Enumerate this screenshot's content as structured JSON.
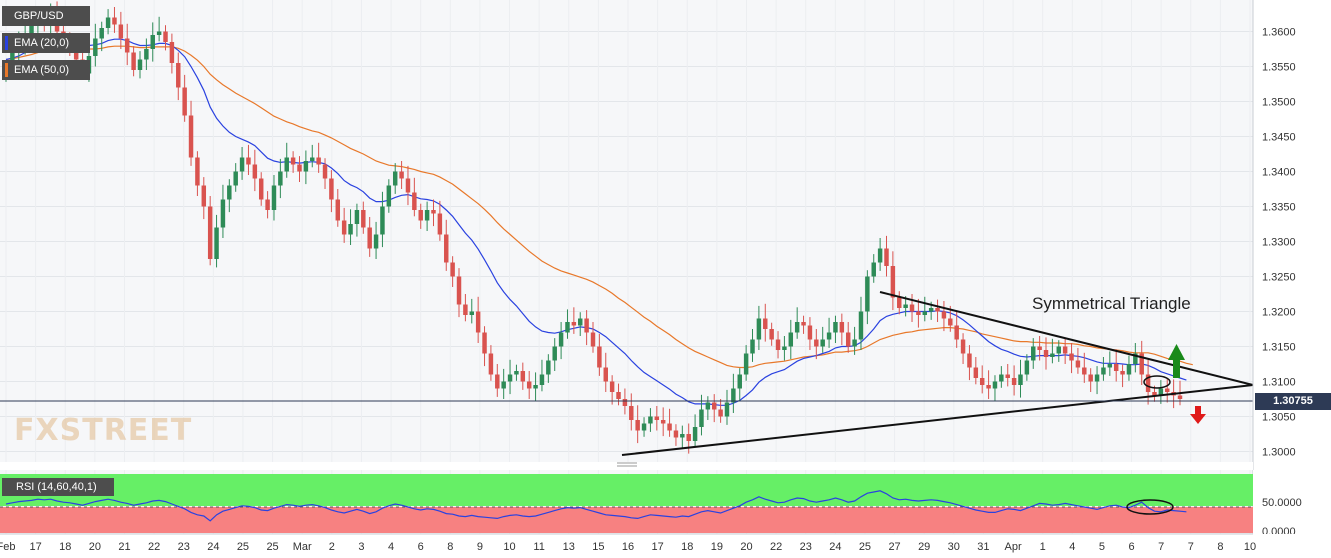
{
  "chart_data": {
    "type": "candlestick",
    "legend": {
      "symbol": "GBP/USD",
      "ema20": "EMA (20,0)",
      "ema50": "EMA (50,0)",
      "rsi": "RSI (14,60,40,1)"
    },
    "watermark": "FXSTREET",
    "annotation": "Symmetrical Triangle",
    "current_price": "1.30755",
    "ylim": [
      1.2985,
      1.3645
    ],
    "y_ticks": [
      "1.3600",
      "1.3550",
      "1.3500",
      "1.3450",
      "1.3400",
      "1.3350",
      "1.3300",
      "1.3250",
      "1.3200",
      "1.3150",
      "1.3100",
      "1.3050",
      "1.3000"
    ],
    "rsi_ticks": [
      "50.0000",
      "0.0000"
    ],
    "x_ticks": [
      "Feb",
      "17",
      "18",
      "20",
      "21",
      "22",
      "23",
      "24",
      "25",
      "25",
      "Mar",
      "2",
      "3",
      "4",
      "6",
      "8",
      "9",
      "10",
      "11",
      "13",
      "15",
      "16",
      "17",
      "18",
      "19",
      "20",
      "22",
      "23",
      "24",
      "25",
      "27",
      "29",
      "30",
      "31",
      "Apr",
      "1",
      "4",
      "5",
      "6",
      "7",
      "7",
      "8",
      "10"
    ],
    "candle_closes": [
      1.3545,
      1.357,
      1.3585,
      1.3595,
      1.361,
      1.362,
      1.3615,
      1.3625,
      1.36,
      1.359,
      1.358,
      1.356,
      1.354,
      1.3565,
      1.359,
      1.3605,
      1.362,
      1.361,
      1.359,
      1.357,
      1.3545,
      1.356,
      1.3575,
      1.3595,
      1.36,
      1.3585,
      1.3555,
      1.352,
      1.348,
      1.342,
      1.338,
      1.335,
      1.3275,
      1.332,
      1.336,
      1.338,
      1.34,
      1.342,
      1.341,
      1.339,
      1.336,
      1.3345,
      1.338,
      1.34,
      1.342,
      1.341,
      1.34,
      1.3415,
      1.342,
      1.341,
      1.339,
      1.336,
      1.333,
      1.331,
      1.3325,
      1.3345,
      1.332,
      1.329,
      1.331,
      1.335,
      1.338,
      1.34,
      1.339,
      1.337,
      1.3345,
      1.333,
      1.3345,
      1.334,
      1.331,
      1.327,
      1.325,
      1.321,
      1.3195,
      1.32,
      1.317,
      1.314,
      1.311,
      1.309,
      1.31,
      1.311,
      1.3115,
      1.31,
      1.309,
      1.3095,
      1.311,
      1.313,
      1.315,
      1.317,
      1.3185,
      1.318,
      1.319,
      1.317,
      1.315,
      1.312,
      1.31,
      1.3085,
      1.3075,
      1.3065,
      1.3045,
      1.303,
      1.304,
      1.305,
      1.3045,
      1.304,
      1.303,
      1.302,
      1.3025,
      1.3015,
      1.3035,
      1.306,
      1.307,
      1.306,
      1.305,
      1.307,
      1.309,
      1.311,
      1.314,
      1.316,
      1.319,
      1.3175,
      1.316,
      1.3145,
      1.315,
      1.317,
      1.3185,
      1.318,
      1.316,
      1.315,
      1.316,
      1.317,
      1.3185,
      1.317,
      1.315,
      1.316,
      1.32,
      1.325,
      1.327,
      1.329,
      1.3265,
      1.322,
      1.3205,
      1.321,
      1.32,
      1.3195,
      1.32,
      1.3205,
      1.32,
      1.319,
      1.318,
      1.316,
      1.314,
      1.312,
      1.3105,
      1.3095,
      1.309,
      1.31,
      1.311,
      1.3105,
      1.3095,
      1.311,
      1.313,
      1.315,
      1.3145,
      1.3135,
      1.314,
      1.315,
      1.314,
      1.313,
      1.312,
      1.311,
      1.31,
      1.311,
      1.312,
      1.3125,
      1.3115,
      1.311,
      1.3125,
      1.314,
      1.311,
      1.3085,
      1.308,
      1.309,
      1.3085,
      1.308,
      1.3075
    ],
    "ema20": [
      1.356,
      1.3562,
      1.3565,
      1.357,
      1.3575,
      1.358,
      1.3583,
      1.3587,
      1.3588,
      1.3588,
      1.3587,
      1.3585,
      1.3581,
      1.358,
      1.3581,
      1.3583,
      1.3587,
      1.3589,
      1.3589,
      1.3587,
      1.3583,
      1.358,
      1.358,
      1.3581,
      1.3583,
      1.3583,
      1.358,
      1.3573,
      1.3564,
      1.355,
      1.3534,
      1.3516,
      1.3492,
      1.3476,
      1.3465,
      1.3456,
      1.345,
      1.3446,
      1.3442,
      1.3437,
      1.3428,
      1.3419,
      1.3415,
      1.3413,
      1.3414,
      1.3413,
      1.3412,
      1.3413,
      1.3414,
      1.3413,
      1.3411,
      1.3405,
      1.3397,
      1.3387,
      1.3381,
      1.3377,
      1.3371,
      1.3362,
      1.3357,
      1.3357,
      1.3359,
      1.3363,
      1.3366,
      1.3367,
      1.3364,
      1.3361,
      1.336,
      1.3358,
      1.3353,
      1.3345,
      1.3336,
      1.3324,
      1.3312,
      1.3302,
      1.3289,
      1.3274,
      1.3258,
      1.3241,
      1.3228,
      1.3217,
      1.3208,
      1.3197,
      1.3186,
      1.3178,
      1.3172,
      1.317,
      1.3169,
      1.3171,
      1.3174,
      1.3176,
      1.3178,
      1.3177,
      1.3175,
      1.317,
      1.3164,
      1.3156,
      1.3148,
      1.314,
      1.313,
      1.3121,
      1.3113,
      1.3107,
      1.3101,
      1.3095,
      1.3089,
      1.3082,
      1.3077,
      1.3071,
      1.3068,
      1.3068,
      1.3068,
      1.3067,
      1.3066,
      1.3066,
      1.3069,
      1.3073,
      1.308,
      1.3088,
      1.3099,
      1.3106,
      1.3111,
      1.3114,
      1.3117,
      1.3123,
      1.3129,
      1.3133,
      1.3135,
      1.3137,
      1.314,
      1.3143,
      1.3148,
      1.315,
      1.315,
      1.3151,
      1.3156,
      1.3165,
      1.3175,
      1.3187,
      1.3193,
      1.3196,
      1.3198,
      1.32,
      1.32,
      1.32,
      1.32,
      1.32,
      1.3201,
      1.32,
      1.3198,
      1.3194,
      1.3188,
      1.3181,
      1.3173,
      1.3165,
      1.3157,
      1.3151,
      1.3146,
      1.3143,
      1.3139,
      1.3136,
      1.3135,
      1.3136,
      1.3137,
      1.3137,
      1.3137,
      1.3137,
      1.3138,
      1.3137,
      1.3136,
      1.3134,
      1.3131,
      1.3128,
      1.3126,
      1.3126,
      1.3126,
      1.3125,
      1.3124,
      1.3124,
      1.3125,
      1.3123,
      1.3119,
      1.3114,
      1.3111,
      1.3108,
      1.3105,
      1.3102
    ],
    "ema50": [
      1.356,
      1.3561,
      1.3563,
      1.3565,
      1.3567,
      1.357,
      1.3572,
      1.3574,
      1.3575,
      1.3576,
      1.3576,
      1.3576,
      1.3575,
      1.3575,
      1.3575,
      1.3576,
      1.3578,
      1.3579,
      1.3579,
      1.3579,
      1.3578,
      1.3577,
      1.3577,
      1.3578,
      1.3578,
      1.3578,
      1.3578,
      1.3576,
      1.3572,
      1.3566,
      1.3559,
      1.355,
      1.3539,
      1.3531,
      1.3524,
      1.3518,
      1.3512,
      1.3507,
      1.3502,
      1.3497,
      1.3491,
      1.3485,
      1.3479,
      1.3475,
      1.3471,
      1.3468,
      1.3464,
      1.3461,
      1.3458,
      1.3456,
      1.3452,
      1.3448,
      1.3443,
      1.3438,
      1.3433,
      1.3429,
      1.3425,
      1.342,
      1.3415,
      1.3412,
      1.3409,
      1.3408,
      1.3407,
      1.3405,
      1.3403,
      1.34,
      1.3398,
      1.3396,
      1.3392,
      1.3387,
      1.3382,
      1.3375,
      1.3368,
      1.3361,
      1.3354,
      1.3346,
      1.3337,
      1.3327,
      1.3318,
      1.331,
      1.3302,
      1.3294,
      1.3286,
      1.3279,
      1.3272,
      1.3267,
      1.3262,
      1.3258,
      1.3255,
      1.3252,
      1.3249,
      1.3246,
      1.3242,
      1.3237,
      1.3232,
      1.3226,
      1.3219,
      1.3213,
      1.3206,
      1.3199,
      1.3192,
      1.3186,
      1.3179,
      1.3173,
      1.3167,
      1.316,
      1.3154,
      1.3148,
      1.3143,
      1.3139,
      1.3135,
      1.3131,
      1.3127,
      1.3123,
      1.3121,
      1.312,
      1.312,
      1.3121,
      1.3124,
      1.3126,
      1.3127,
      1.3128,
      1.3129,
      1.3131,
      1.3133,
      1.3135,
      1.3136,
      1.3137,
      1.3138,
      1.314,
      1.3142,
      1.3142,
      1.3143,
      1.3144,
      1.3146,
      1.315,
      1.3155,
      1.316,
      1.3163,
      1.3166,
      1.3168,
      1.317,
      1.3171,
      1.3173,
      1.3174,
      1.3175,
      1.3176,
      1.3177,
      1.3177,
      1.3176,
      1.3175,
      1.3173,
      1.3171,
      1.3168,
      1.3166,
      1.3164,
      1.3162,
      1.316,
      1.3158,
      1.3157,
      1.3157,
      1.3156,
      1.3156,
      1.3155,
      1.3155,
      1.3155,
      1.3154,
      1.3154,
      1.3153,
      1.3151,
      1.315,
      1.3148,
      1.3147,
      1.3146,
      1.3145,
      1.3144,
      1.3142,
      1.3141,
      1.3141,
      1.3141,
      1.3139,
      1.3136,
      1.3133,
      1.3131,
      1.3129,
      1.3126,
      1.3124
    ],
    "rsi": [
      50,
      52,
      54,
      55,
      56,
      58,
      57,
      58,
      55,
      53,
      52,
      50,
      48,
      51,
      54,
      56,
      58,
      56,
      53,
      51,
      48,
      50,
      52,
      55,
      56,
      54,
      50,
      46,
      42,
      36,
      32,
      30,
      22,
      32,
      38,
      41,
      44,
      47,
      46,
      44,
      40,
      39,
      43,
      46,
      49,
      48,
      46,
      48,
      49,
      47,
      44,
      40,
      37,
      35,
      38,
      41,
      38,
      34,
      37,
      43,
      47,
      50,
      48,
      45,
      42,
      40,
      42,
      41,
      38,
      34,
      33,
      30,
      29,
      31,
      29,
      28,
      27,
      26,
      29,
      31,
      32,
      30,
      29,
      30,
      33,
      36,
      39,
      42,
      44,
      43,
      44,
      41,
      38,
      35,
      32,
      31,
      30,
      29,
      27,
      26,
      29,
      32,
      31,
      30,
      29,
      28,
      30,
      29,
      33,
      37,
      39,
      37,
      35,
      39,
      43,
      47,
      53,
      57,
      62,
      58,
      55,
      52,
      53,
      57,
      60,
      59,
      55,
      53,
      55,
      57,
      60,
      57,
      53,
      55,
      62,
      68,
      70,
      72,
      67,
      60,
      57,
      58,
      56,
      55,
      56,
      57,
      56,
      54,
      52,
      49,
      46,
      43,
      40,
      38,
      36,
      36,
      39,
      42,
      41,
      39,
      43,
      47,
      51,
      50,
      48,
      49,
      51,
      49,
      47,
      45,
      43,
      41,
      44,
      47,
      48,
      45,
      44,
      48,
      53,
      44,
      38,
      37,
      40,
      39,
      38,
      37
    ]
  }
}
